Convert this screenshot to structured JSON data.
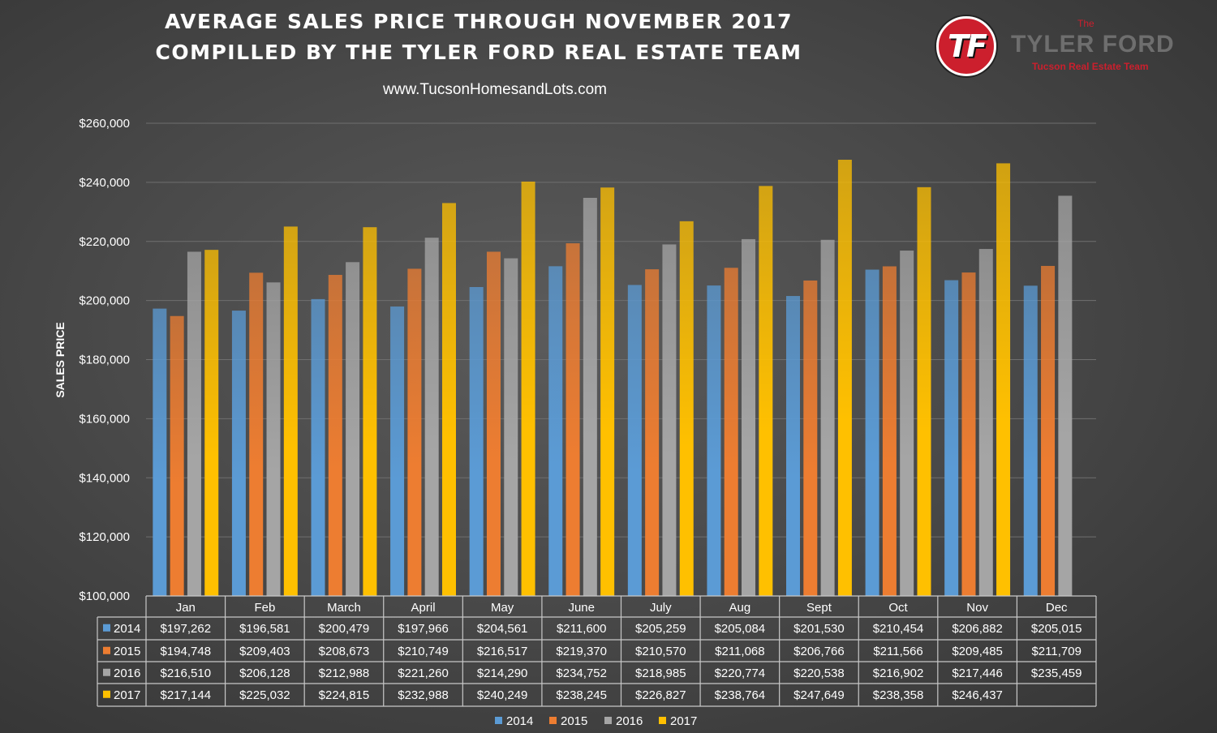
{
  "header": {
    "title_line1": "AVERAGE SALES PRICE THROUGH NOVEMBER 2017",
    "title_line2": "COMPILLED BY THE TYLER FORD REAL ESTATE TEAM",
    "website": "www.TucsonHomesandLots.com"
  },
  "logo": {
    "monogram": "TF",
    "the": "The",
    "name": "TYLER FORD",
    "subtitle": "Tucson Real Estate Team"
  },
  "chart_data": {
    "type": "bar",
    "ylabel": "SALES PRICE",
    "ylim": [
      100000,
      260000
    ],
    "ytick_step": 20000,
    "ytick_labels": [
      "$100,000",
      "$120,000",
      "$140,000",
      "$160,000",
      "$180,000",
      "$200,000",
      "$220,000",
      "$240,000",
      "$260,000"
    ],
    "grid": true,
    "legend_position": "bottom",
    "categories": [
      "Jan",
      "Feb",
      "March",
      "April",
      "May",
      "June",
      "July",
      "Aug",
      "Sept",
      "Oct",
      "Nov",
      "Dec"
    ],
    "series": [
      {
        "name": "2014",
        "color": "#5b9bd5",
        "values": [
          197262,
          196581,
          200479,
          197966,
          204561,
          211600,
          205259,
          205084,
          201530,
          210454,
          206882,
          205015
        ],
        "labels": [
          "$197,262",
          "$196,581",
          "$200,479",
          "$197,966",
          "$204,561",
          "$211,600",
          "$205,259",
          "$205,084",
          "$201,530",
          "$210,454",
          "$206,882",
          "$205,015"
        ]
      },
      {
        "name": "2015",
        "color": "#ed7d31",
        "values": [
          194748,
          209403,
          208673,
          210749,
          216517,
          219370,
          210570,
          211068,
          206766,
          211566,
          209485,
          211709
        ],
        "labels": [
          "$194,748",
          "$209,403",
          "$208,673",
          "$210,749",
          "$216,517",
          "$219,370",
          "$210,570",
          "$211,068",
          "$206,766",
          "$211,566",
          "$209,485",
          "$211,709"
        ]
      },
      {
        "name": "2016",
        "color": "#a5a5a5",
        "values": [
          216510,
          206128,
          212988,
          221260,
          214290,
          234752,
          218985,
          220774,
          220538,
          216902,
          217446,
          235459
        ],
        "labels": [
          "$216,510",
          "$206,128",
          "$212,988",
          "$221,260",
          "$214,290",
          "$234,752",
          "$218,985",
          "$220,774",
          "$220,538",
          "$216,902",
          "$217,446",
          "$235,459"
        ]
      },
      {
        "name": "2017",
        "color": "#ffc000",
        "values": [
          217144,
          225032,
          224815,
          232988,
          240249,
          238245,
          226827,
          238764,
          247649,
          238358,
          246437,
          null
        ],
        "labels": [
          "$217,144",
          "$225,032",
          "$224,815",
          "$232,988",
          "$240,249",
          "$238,245",
          "$226,827",
          "$238,764",
          "$247,649",
          "$238,358",
          "$246,437",
          ""
        ]
      }
    ]
  }
}
